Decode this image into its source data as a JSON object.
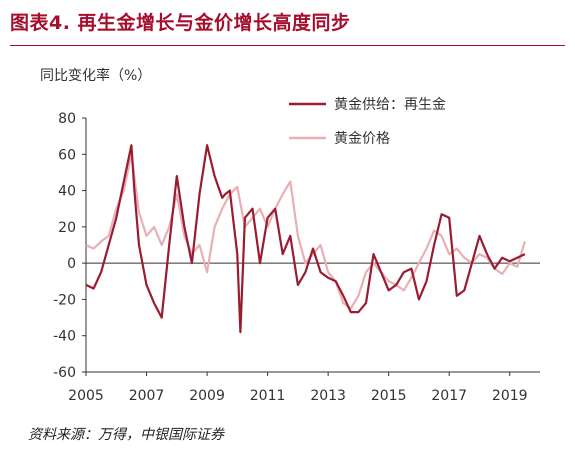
{
  "figure": {
    "title": "图表4. 再生金增长与金价增长高度同步",
    "source": "资料来源：万得，中银国际证券"
  },
  "chart_data": {
    "type": "line",
    "ylabel": "同比变化率（%）",
    "ylim": [
      -60,
      80
    ],
    "yticks": [
      -60,
      -40,
      -20,
      0,
      20,
      40,
      60,
      80
    ],
    "xlim": [
      2005,
      2020
    ],
    "xticks": [
      2005,
      2007,
      2009,
      2011,
      2013,
      2015,
      2017,
      2019
    ],
    "legend_position": "top-right",
    "series": [
      {
        "name": "黄金供给：再生金",
        "color": "#9b1b30",
        "x": [
          2005.0,
          2005.25,
          2005.5,
          2005.75,
          2006.0,
          2006.25,
          2006.5,
          2006.6,
          2006.75,
          2007.0,
          2007.25,
          2007.5,
          2007.75,
          2008.0,
          2008.25,
          2008.5,
          2008.75,
          2009.0,
          2009.25,
          2009.5,
          2009.6,
          2009.75,
          2010.0,
          2010.1,
          2010.25,
          2010.5,
          2010.75,
          2011.0,
          2011.25,
          2011.5,
          2011.75,
          2012.0,
          2012.25,
          2012.5,
          2012.75,
          2013.0,
          2013.25,
          2013.5,
          2013.75,
          2014.0,
          2014.25,
          2014.5,
          2014.75,
          2015.0,
          2015.25,
          2015.5,
          2015.75,
          2016.0,
          2016.25,
          2016.5,
          2016.75,
          2017.0,
          2017.25,
          2017.5,
          2017.75,
          2018.0,
          2018.25,
          2018.5,
          2018.75,
          2019.0,
          2019.25,
          2019.5
        ],
        "values": [
          -12,
          -14,
          -5,
          10,
          25,
          45,
          65,
          40,
          10,
          -12,
          -22,
          -30,
          10,
          48,
          20,
          0,
          38,
          65,
          48,
          36,
          38,
          40,
          5,
          -38,
          25,
          30,
          0,
          25,
          30,
          5,
          15,
          -12,
          -5,
          8,
          -5,
          -8,
          -10,
          -18,
          -27,
          -27,
          -22,
          5,
          -5,
          -15,
          -12,
          -5,
          -3,
          -20,
          -10,
          10,
          27,
          25,
          -18,
          -15,
          0,
          15,
          5,
          -3,
          3,
          1,
          3,
          5
        ]
      },
      {
        "name": "黄金价格",
        "color": "#e8b0b4",
        "x": [
          2005.0,
          2005.25,
          2005.5,
          2005.75,
          2006.0,
          2006.25,
          2006.5,
          2006.75,
          2007.0,
          2007.25,
          2007.5,
          2007.75,
          2008.0,
          2008.25,
          2008.5,
          2008.75,
          2009.0,
          2009.25,
          2009.5,
          2009.75,
          2010.0,
          2010.25,
          2010.5,
          2010.75,
          2011.0,
          2011.25,
          2011.5,
          2011.75,
          2012.0,
          2012.25,
          2012.5,
          2012.75,
          2013.0,
          2013.25,
          2013.5,
          2013.75,
          2014.0,
          2014.25,
          2014.5,
          2014.75,
          2015.0,
          2015.25,
          2015.5,
          2015.75,
          2016.0,
          2016.25,
          2016.5,
          2016.75,
          2017.0,
          2017.25,
          2017.5,
          2017.75,
          2018.0,
          2018.25,
          2018.5,
          2018.75,
          2019.0,
          2019.25,
          2019.5
        ],
        "values": [
          10,
          8,
          12,
          15,
          30,
          40,
          60,
          28,
          15,
          20,
          10,
          20,
          38,
          15,
          5,
          10,
          -5,
          20,
          30,
          38,
          42,
          20,
          25,
          30,
          20,
          30,
          38,
          45,
          15,
          0,
          5,
          10,
          -5,
          -10,
          -22,
          -25,
          -18,
          -5,
          0,
          -5,
          -10,
          -12,
          -15,
          -8,
          0,
          8,
          18,
          15,
          5,
          8,
          3,
          0,
          5,
          3,
          -3,
          -6,
          0,
          -2,
          12
        ]
      }
    ]
  }
}
